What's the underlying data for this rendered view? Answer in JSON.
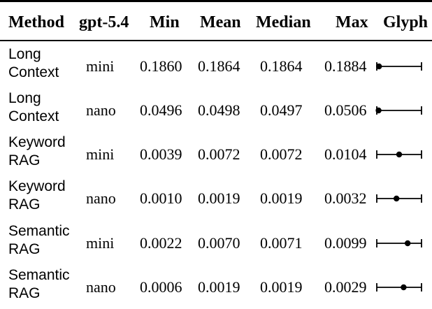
{
  "table": {
    "headers": {
      "method": "Method",
      "model": "gpt-5.4",
      "min": "Min",
      "mean": "Mean",
      "median": "Median",
      "max": "Max",
      "glyph": "Glyph"
    },
    "glyph_range": [
      0,
      1
    ],
    "rows": [
      {
        "method_line1": "Long",
        "method_line2": "Context",
        "model": "mini",
        "min": "0.1860",
        "mean": "0.1864",
        "median": "0.1864",
        "max": "0.1884",
        "glyph": {
          "low": 0.0,
          "mid": 0.05,
          "high": 1.0
        }
      },
      {
        "method_line1": "Long",
        "method_line2": "Context",
        "model": "nano",
        "min": "0.0496",
        "mean": "0.0498",
        "median": "0.0497",
        "max": "0.0506",
        "glyph": {
          "low": 0.0,
          "mid": 0.04,
          "high": 1.0
        }
      },
      {
        "method_line1": "Keyword",
        "method_line2": "RAG",
        "model": "mini",
        "min": "0.0039",
        "mean": "0.0072",
        "median": "0.0072",
        "max": "0.0104",
        "glyph": {
          "low": 0.0,
          "mid": 0.5,
          "high": 1.0
        }
      },
      {
        "method_line1": "Keyword",
        "method_line2": "RAG",
        "model": "nano",
        "min": "0.0010",
        "mean": "0.0019",
        "median": "0.0019",
        "max": "0.0032",
        "glyph": {
          "low": 0.0,
          "mid": 0.44,
          "high": 1.0
        }
      },
      {
        "method_line1": "Semantic",
        "method_line2": "RAG",
        "model": "mini",
        "min": "0.0022",
        "mean": "0.0070",
        "median": "0.0071",
        "max": "0.0099",
        "glyph": {
          "low": 0.0,
          "mid": 0.69,
          "high": 1.0
        }
      },
      {
        "method_line1": "Semantic",
        "method_line2": "RAG",
        "model": "nano",
        "min": "0.0006",
        "mean": "0.0019",
        "median": "0.0019",
        "max": "0.0029",
        "glyph": {
          "low": 0.0,
          "mid": 0.6,
          "high": 1.0
        }
      }
    ]
  }
}
